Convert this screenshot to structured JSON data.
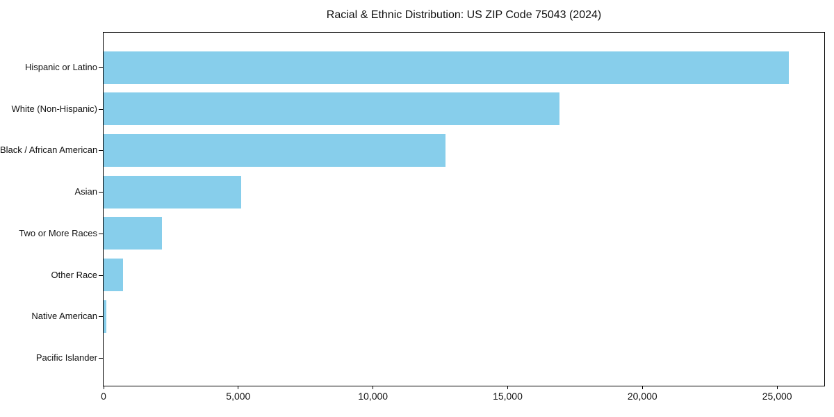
{
  "chart_data": {
    "type": "bar",
    "orientation": "horizontal",
    "title": "Racial & Ethnic Distribution: US ZIP Code 75043 (2024)",
    "categories": [
      "Hispanic or Latino",
      "White (Non-Hispanic)",
      "Black / African American",
      "Asian",
      "Two or More Races",
      "Other Race",
      "Native American",
      "Pacific Islander"
    ],
    "values": [
      25440,
      16910,
      12700,
      5100,
      2170,
      715,
      95,
      0
    ],
    "xlabel": "",
    "ylabel": "",
    "xlim": [
      0,
      26750
    ],
    "xticks": [
      0,
      5000,
      10000,
      15000,
      20000,
      25000
    ],
    "xtick_labels": [
      "0",
      "5,000",
      "10,000",
      "15,000",
      "20,000",
      "25,000"
    ],
    "bar_color": "#87CEEB",
    "axis_color": "#000000",
    "background_color": "#ffffff",
    "grid": false
  }
}
